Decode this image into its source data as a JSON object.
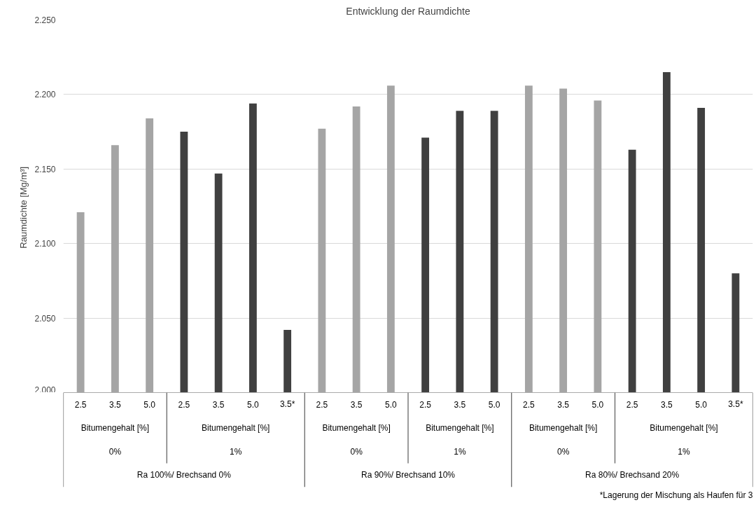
{
  "chart_data": {
    "type": "bar",
    "title": "Entwicklung der Raumdichte",
    "ylabel": "Raumdichte  [Mg/m³]",
    "categories": [
      "2.5",
      "3.5",
      "5.0",
      "2.5",
      "3.5",
      "5.0",
      "3.5*",
      "2.5",
      "3.5",
      "5.0",
      "2.5",
      "3.5",
      "5.0",
      "2.5",
      "3.5",
      "5.0",
      "2.5",
      "3.5",
      "5.0",
      "3.5*"
    ],
    "values": [
      2.121,
      2.166,
      2.184,
      2.175,
      2.147,
      2.194,
      2.042,
      2.177,
      2.192,
      2.206,
      2.171,
      2.189,
      2.189,
      2.206,
      2.204,
      2.196,
      2.163,
      2.215,
      2.191,
      2.08
    ],
    "colors": [
      "#a5a5a5",
      "#a5a5a5",
      "#a5a5a5",
      "#404040",
      "#404040",
      "#404040",
      "#404040",
      "#a5a5a5",
      "#a5a5a5",
      "#a5a5a5",
      "#404040",
      "#404040",
      "#404040",
      "#a5a5a5",
      "#a5a5a5",
      "#a5a5a5",
      "#404040",
      "#404040",
      "#404040",
      "#404040"
    ],
    "ylim": [
      2.0,
      2.25
    ],
    "yticks": [
      {
        "value": 2.0,
        "label": "2.000"
      },
      {
        "value": 2.05,
        "label": "2.050"
      },
      {
        "value": 2.1,
        "label": "2.100"
      },
      {
        "value": 2.15,
        "label": "2.150"
      },
      {
        "value": 2.2,
        "label": "2.200"
      },
      {
        "value": 2.25,
        "label": "2.250"
      }
    ],
    "grid": "y",
    "annotations": [
      "Bitumengehalt [%]",
      "Bitumengehalt [%]",
      "Bitumengehalt [%]",
      "Bitumengehalt [%]",
      "Bitumengehalt [%]",
      "Bitumengehalt [%]",
      "0%",
      "1%",
      "0%",
      "1%",
      "0%",
      "1%",
      "Ra 100%/ Brechsand 0%",
      "Ra 90%/ Brechsand 10%",
      "Ra 80%/ Brechsand 20%",
      "*Lagerung der Mischung als Haufen für 3"
    ]
  }
}
